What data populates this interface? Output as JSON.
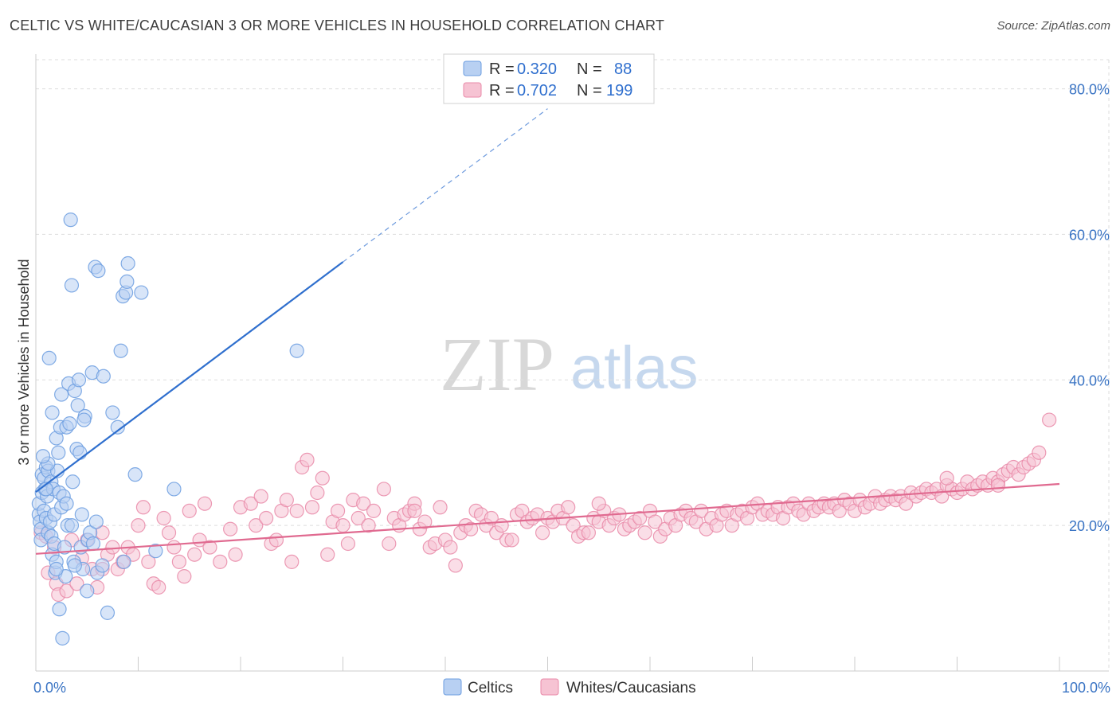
{
  "header": {
    "title": "CELTIC VS WHITE/CAUCASIAN 3 OR MORE VEHICLES IN HOUSEHOLD CORRELATION CHART",
    "source": "Source: ZipAtlas.com"
  },
  "watermark": {
    "zip": "ZIP",
    "atlas": "atlas"
  },
  "colors": {
    "celtic": "#6c9ee0",
    "celtic_fill": "#b8d0f2",
    "celtic_line": "#2f6fce",
    "white": "#e98aa8",
    "white_fill": "#f6c3d3",
    "white_line": "#e06a90",
    "tick_label": "#3a74c4",
    "grid": "#dddddd"
  },
  "legend": {
    "rows": [
      {
        "r_label": "R =",
        "r_value": "0.320",
        "n_label": "N =",
        "n_value": "88"
      },
      {
        "r_label": "R =",
        "r_value": "0.702",
        "n_label": "N =",
        "n_value": "199"
      }
    ]
  },
  "bottom_legend": {
    "celtic": "Celtics",
    "white": "Whites/Caucasians"
  },
  "chart_data": {
    "type": "scatter",
    "title": "CELTIC VS WHITE/CAUCASIAN 3 OR MORE VEHICLES IN HOUSEHOLD CORRELATION CHART",
    "xlabel": "",
    "ylabel": "3 or more Vehicles in Household",
    "xlim": [
      0,
      100
    ],
    "ylim": [
      0,
      84
    ],
    "x_ticks": [
      0,
      10,
      20,
      30,
      40,
      50,
      60,
      70,
      80,
      90,
      100
    ],
    "x_tick_labels": [
      "0.0%",
      "",
      "",
      "",
      "",
      "",
      "",
      "",
      "",
      "",
      "100.0%"
    ],
    "y_ticks": [
      20,
      40,
      60,
      80
    ],
    "y_tick_labels": [
      "20.0%",
      "40.0%",
      "60.0%",
      "80.0%"
    ],
    "grid": true,
    "legend_position": "top-center",
    "series": [
      {
        "name": "Celtics",
        "r": 0.32,
        "n": 88,
        "trend": {
          "x0": 0,
          "y0": 24.6,
          "x1": 30,
          "y1": 56.2,
          "dashed_to_x": 50
        },
        "points": [
          [
            0.3,
            21.5
          ],
          [
            0.3,
            23
          ],
          [
            0.4,
            20.5
          ],
          [
            0.5,
            19.5
          ],
          [
            0.5,
            18
          ],
          [
            0.6,
            24.5
          ],
          [
            0.6,
            27
          ],
          [
            0.8,
            22
          ],
          [
            0.8,
            26.5
          ],
          [
            0.9,
            25
          ],
          [
            1.0,
            28
          ],
          [
            1.0,
            21
          ],
          [
            1.1,
            24
          ],
          [
            1.2,
            27.5
          ],
          [
            1.2,
            19
          ],
          [
            1.3,
            43
          ],
          [
            1.4,
            20.5
          ],
          [
            1.5,
            26
          ],
          [
            1.5,
            18.5
          ],
          [
            1.6,
            35.5
          ],
          [
            1.6,
            16
          ],
          [
            1.7,
            25
          ],
          [
            1.8,
            21.5
          ],
          [
            1.8,
            17.5
          ],
          [
            1.9,
            13.5
          ],
          [
            2.0,
            32
          ],
          [
            2.0,
            15
          ],
          [
            2.1,
            27.5
          ],
          [
            2.2,
            30
          ],
          [
            2.3,
            24.5
          ],
          [
            2.3,
            8.5
          ],
          [
            2.4,
            33.5
          ],
          [
            2.5,
            22.5
          ],
          [
            2.5,
            38
          ],
          [
            2.6,
            4.5
          ],
          [
            2.7,
            24
          ],
          [
            2.8,
            17
          ],
          [
            2.9,
            13
          ],
          [
            3.0,
            33.5
          ],
          [
            3.0,
            23
          ],
          [
            3.1,
            20
          ],
          [
            3.2,
            39.5
          ],
          [
            3.3,
            34
          ],
          [
            3.4,
            62
          ],
          [
            3.5,
            53
          ],
          [
            3.5,
            20
          ],
          [
            3.6,
            26
          ],
          [
            3.7,
            15
          ],
          [
            3.8,
            38.5
          ],
          [
            4.0,
            30.5
          ],
          [
            4.1,
            36.5
          ],
          [
            4.2,
            40
          ],
          [
            4.3,
            30
          ],
          [
            4.4,
            17
          ],
          [
            4.5,
            21.5
          ],
          [
            4.6,
            14
          ],
          [
            4.8,
            35
          ],
          [
            5.0,
            11
          ],
          [
            5.1,
            18
          ],
          [
            5.3,
            19
          ],
          [
            5.5,
            41
          ],
          [
            5.6,
            17.5
          ],
          [
            5.8,
            55.5
          ],
          [
            5.9,
            20.5
          ],
          [
            6.0,
            13.5
          ],
          [
            6.1,
            55
          ],
          [
            6.5,
            14.5
          ],
          [
            6.6,
            40.5
          ],
          [
            7.0,
            8
          ],
          [
            7.5,
            35.5
          ],
          [
            8.0,
            33.5
          ],
          [
            8.3,
            44
          ],
          [
            8.5,
            51.5
          ],
          [
            8.6,
            15
          ],
          [
            8.8,
            52
          ],
          [
            8.9,
            53.5
          ],
          [
            9.0,
            56
          ],
          [
            9.7,
            27
          ],
          [
            10.3,
            52
          ],
          [
            11.7,
            16.5
          ],
          [
            13.5,
            25
          ],
          [
            25.5,
            44
          ],
          [
            1.2,
            28.5
          ],
          [
            2.0,
            14
          ],
          [
            3.8,
            14.5
          ],
          [
            1.0,
            25
          ],
          [
            0.7,
            29.5
          ],
          [
            4.7,
            34.5
          ]
        ]
      },
      {
        "name": "Whites/Caucasians",
        "r": 0.702,
        "n": 199,
        "trend": {
          "x0": 0,
          "y0": 16.1,
          "x1": 100,
          "y1": 25.7
        },
        "points": [
          [
            0.5,
            19
          ],
          [
            1.0,
            18.5
          ],
          [
            1.2,
            13.5
          ],
          [
            1.8,
            17
          ],
          [
            2.0,
            12
          ],
          [
            2.2,
            10.5
          ],
          [
            3.0,
            11
          ],
          [
            3.5,
            18
          ],
          [
            4.0,
            12
          ],
          [
            4.5,
            15.5
          ],
          [
            5.0,
            18
          ],
          [
            5.5,
            14
          ],
          [
            6.0,
            11.5
          ],
          [
            6.5,
            14
          ],
          [
            6.5,
            19
          ],
          [
            7.0,
            16
          ],
          [
            7.5,
            17
          ],
          [
            8.0,
            14
          ],
          [
            8.5,
            15
          ],
          [
            9.0,
            17
          ],
          [
            9.5,
            16
          ],
          [
            10.0,
            20
          ],
          [
            10.5,
            22.5
          ],
          [
            11.0,
            15
          ],
          [
            11.5,
            12
          ],
          [
            12.0,
            11.5
          ],
          [
            12.5,
            21
          ],
          [
            13.0,
            19
          ],
          [
            13.5,
            17
          ],
          [
            14.0,
            15
          ],
          [
            14.5,
            13
          ],
          [
            15.0,
            22
          ],
          [
            15.5,
            16
          ],
          [
            16.0,
            18
          ],
          [
            16.5,
            23
          ],
          [
            17.0,
            17
          ],
          [
            18.0,
            15
          ],
          [
            19.0,
            19.5
          ],
          [
            19.5,
            16
          ],
          [
            20.0,
            22.5
          ],
          [
            21.0,
            23
          ],
          [
            21.5,
            20
          ],
          [
            22.0,
            24
          ],
          [
            22.5,
            21
          ],
          [
            23.0,
            17.5
          ],
          [
            23.5,
            18
          ],
          [
            24.0,
            22
          ],
          [
            24.5,
            23.5
          ],
          [
            25.0,
            15
          ],
          [
            25.5,
            22
          ],
          [
            26.0,
            28
          ],
          [
            26.5,
            29
          ],
          [
            27.0,
            22.5
          ],
          [
            27.5,
            24.5
          ],
          [
            28.0,
            26.5
          ],
          [
            28.5,
            16
          ],
          [
            29.0,
            20.5
          ],
          [
            29.5,
            22
          ],
          [
            30.0,
            20
          ],
          [
            30.5,
            17.5
          ],
          [
            31.0,
            23.5
          ],
          [
            31.5,
            21
          ],
          [
            32.0,
            23
          ],
          [
            32.5,
            20
          ],
          [
            33.0,
            22
          ],
          [
            34.0,
            25
          ],
          [
            34.5,
            17.5
          ],
          [
            35.0,
            21
          ],
          [
            35.5,
            20
          ],
          [
            36.0,
            21.5
          ],
          [
            36.5,
            22
          ],
          [
            37.0,
            23
          ],
          [
            37.5,
            19.5
          ],
          [
            38.0,
            20.5
          ],
          [
            38.5,
            17
          ],
          [
            39.0,
            17.5
          ],
          [
            39.5,
            22.5
          ],
          [
            40.0,
            18
          ],
          [
            40.5,
            17
          ],
          [
            41.0,
            14.5
          ],
          [
            41.5,
            19
          ],
          [
            42.0,
            20
          ],
          [
            42.5,
            19.5
          ],
          [
            43.0,
            22
          ],
          [
            43.5,
            21.5
          ],
          [
            44.0,
            20
          ],
          [
            44.5,
            21
          ],
          [
            45.0,
            19
          ],
          [
            45.5,
            20
          ],
          [
            46.0,
            18
          ],
          [
            46.5,
            18
          ],
          [
            47.0,
            21.5
          ],
          [
            47.5,
            22
          ],
          [
            48.0,
            20.5
          ],
          [
            48.5,
            21
          ],
          [
            49.0,
            21.5
          ],
          [
            49.5,
            19
          ],
          [
            50.0,
            21
          ],
          [
            50.5,
            20.5
          ],
          [
            51.0,
            22
          ],
          [
            51.5,
            21
          ],
          [
            52.0,
            22.5
          ],
          [
            52.5,
            20
          ],
          [
            53.0,
            18.5
          ],
          [
            53.5,
            19
          ],
          [
            54.0,
            19
          ],
          [
            54.5,
            21
          ],
          [
            55.0,
            20.5
          ],
          [
            55.5,
            22
          ],
          [
            56.0,
            20
          ],
          [
            56.5,
            21
          ],
          [
            57.0,
            21.5
          ],
          [
            57.5,
            19.5
          ],
          [
            58.0,
            20
          ],
          [
            58.5,
            20.5
          ],
          [
            59.0,
            21
          ],
          [
            59.5,
            19
          ],
          [
            60.0,
            22
          ],
          [
            60.5,
            20.5
          ],
          [
            61.0,
            18.5
          ],
          [
            61.5,
            19.5
          ],
          [
            62.0,
            21
          ],
          [
            62.5,
            20
          ],
          [
            63.0,
            21.5
          ],
          [
            63.5,
            22
          ],
          [
            64.0,
            21
          ],
          [
            64.5,
            20.5
          ],
          [
            65.0,
            22
          ],
          [
            65.5,
            19.5
          ],
          [
            66.0,
            21
          ],
          [
            66.5,
            20
          ],
          [
            67.0,
            21.5
          ],
          [
            67.5,
            22
          ],
          [
            68.0,
            20
          ],
          [
            68.5,
            21.5
          ],
          [
            69.0,
            22
          ],
          [
            69.5,
            21
          ],
          [
            70.0,
            22.5
          ],
          [
            70.5,
            23
          ],
          [
            71.0,
            21.5
          ],
          [
            71.5,
            22
          ],
          [
            72.0,
            21.5
          ],
          [
            72.5,
            22.5
          ],
          [
            73.0,
            21
          ],
          [
            73.5,
            22.5
          ],
          [
            74.0,
            23
          ],
          [
            74.5,
            22
          ],
          [
            75.0,
            21.5
          ],
          [
            75.5,
            23
          ],
          [
            76.0,
            22
          ],
          [
            76.5,
            22.5
          ],
          [
            77.0,
            23
          ],
          [
            77.5,
            22.5
          ],
          [
            78.0,
            23
          ],
          [
            78.5,
            22
          ],
          [
            79.0,
            23.5
          ],
          [
            79.5,
            23
          ],
          [
            80.0,
            22
          ],
          [
            80.5,
            23.5
          ],
          [
            81.0,
            22.5
          ],
          [
            81.5,
            23
          ],
          [
            82.0,
            24
          ],
          [
            82.5,
            23
          ],
          [
            83.0,
            23.5
          ],
          [
            83.5,
            24
          ],
          [
            84.0,
            23.5
          ],
          [
            84.5,
            24
          ],
          [
            85.0,
            23
          ],
          [
            85.5,
            24.5
          ],
          [
            86.0,
            24
          ],
          [
            86.5,
            24.5
          ],
          [
            87.0,
            25
          ],
          [
            87.5,
            24.5
          ],
          [
            88.0,
            25
          ],
          [
            88.5,
            24
          ],
          [
            89.0,
            25.5
          ],
          [
            89.5,
            25
          ],
          [
            90.0,
            24.5
          ],
          [
            90.5,
            25
          ],
          [
            91.0,
            26
          ],
          [
            91.5,
            25
          ],
          [
            92.0,
            25.5
          ],
          [
            92.5,
            26
          ],
          [
            93.0,
            25.5
          ],
          [
            93.5,
            26.5
          ],
          [
            94.0,
            26
          ],
          [
            94.5,
            27
          ],
          [
            95.0,
            27.5
          ],
          [
            95.5,
            28
          ],
          [
            96.0,
            27
          ],
          [
            96.5,
            28
          ],
          [
            97.0,
            28.5
          ],
          [
            97.5,
            29
          ],
          [
            98.0,
            30
          ],
          [
            99.0,
            34.5
          ],
          [
            89.0,
            26.5
          ],
          [
            94.0,
            25.5
          ],
          [
            55.0,
            23
          ],
          [
            37.0,
            22
          ]
        ]
      }
    ]
  }
}
